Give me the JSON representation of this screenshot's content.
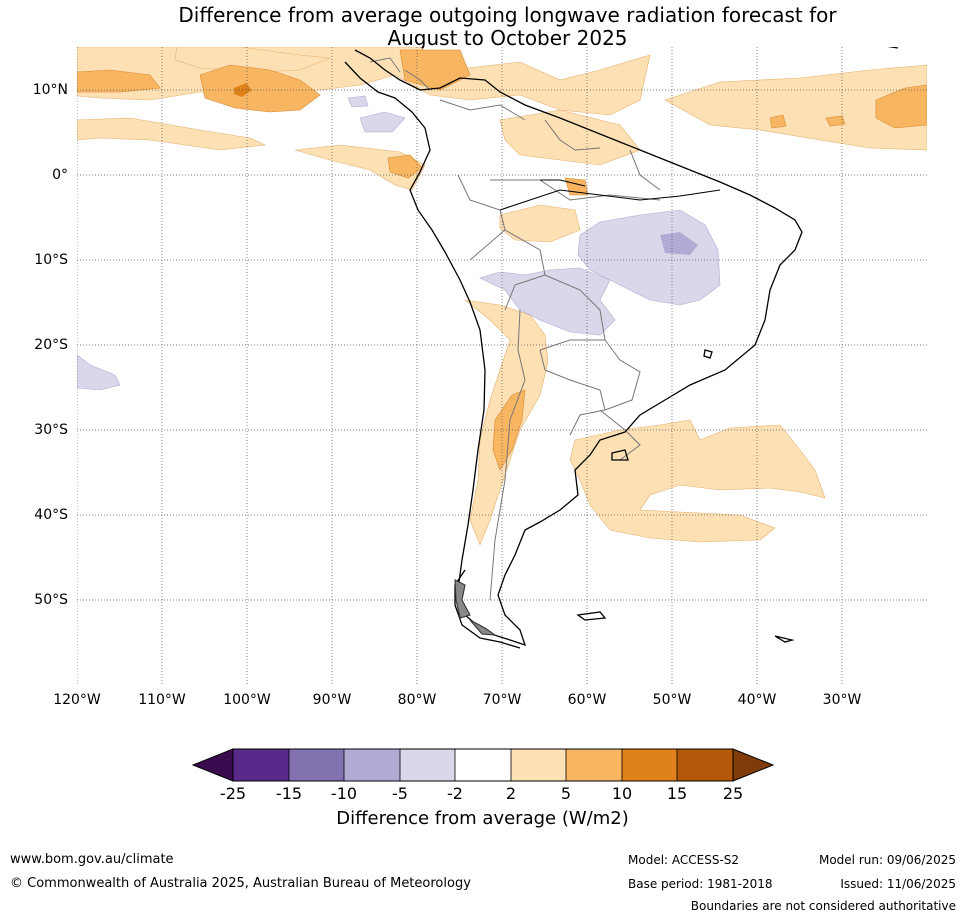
{
  "title_line1": "Difference from average outgoing longwave radiation forecast for",
  "title_line2": "August to October 2025",
  "lat_labels": [
    "10°N",
    "0°",
    "10°S",
    "20°S",
    "30°S",
    "40°S",
    "50°S"
  ],
  "lon_labels": [
    "120°W",
    "110°W",
    "100°W",
    "90°W",
    "80°W",
    "70°W",
    "60°W",
    "50°W",
    "40°W",
    "30°W"
  ],
  "colorbar": {
    "ticks": [
      "-25",
      "-15",
      "-10",
      "-5",
      "-2",
      "2",
      "5",
      "10",
      "15",
      "25"
    ],
    "colors": [
      "#3a0b4f",
      "#5a2a8a",
      "#8273b0",
      "#b2aad4",
      "#d8d8ea",
      "#ffffff",
      "#fde0b3",
      "#f8b562",
      "#e0821a",
      "#b35809",
      "#7f3b08"
    ],
    "label": "Difference from average (W/m2)"
  },
  "footer": {
    "website": "www.bom.gov.au/climate",
    "copyright": "© Commonwealth of Australia 2025, Australian Bureau of Meteorology",
    "model": "Model: ACCESS-S2",
    "base_period": "Base period: 1981-2018",
    "model_run": "Model run: 09/06/2025",
    "issued": "Issued: 11/06/2025",
    "disclaimer": "Boundaries are not considered authoritative"
  }
}
